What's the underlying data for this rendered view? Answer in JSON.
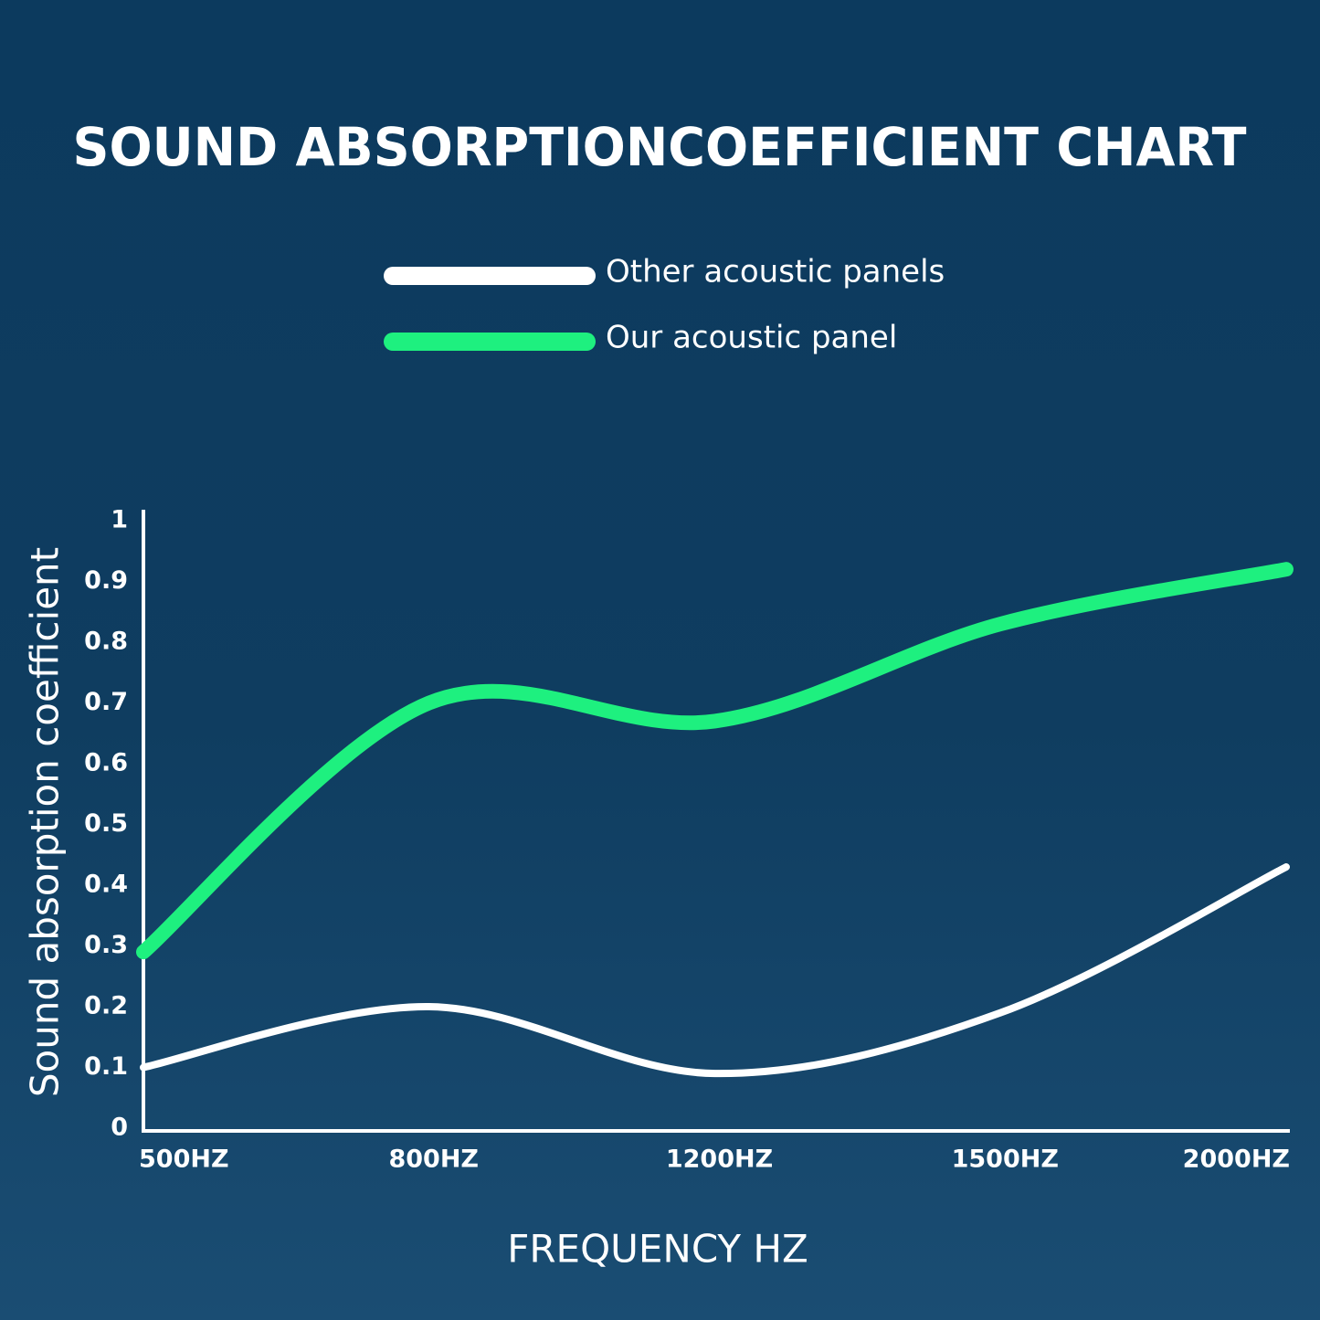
{
  "chart_data": {
    "type": "line",
    "title": "SOUND ABSORPTIONCOEFFICIENT CHART",
    "x_label": "FREQUENCY HZ",
    "y_label": "Sound absorption coefficient",
    "categories": [
      "500HZ",
      "800HZ",
      "1200HZ",
      "1500HZ",
      "2000HZ"
    ],
    "series": [
      {
        "name": "Other acoustic panels",
        "color": "#ffffff",
        "values": [
          0.1,
          0.2,
          0.09,
          0.19,
          0.43
        ]
      },
      {
        "name": "Our acoustic panel",
        "color": "#1ef07f",
        "values": [
          0.29,
          0.7,
          0.67,
          0.83,
          0.92
        ]
      }
    ],
    "ylim": [
      0,
      1
    ],
    "yticks": [
      0,
      0.1,
      0.2,
      0.3,
      0.4,
      0.5,
      0.6,
      0.7,
      0.8,
      0.9,
      1
    ],
    "grid": false
  }
}
